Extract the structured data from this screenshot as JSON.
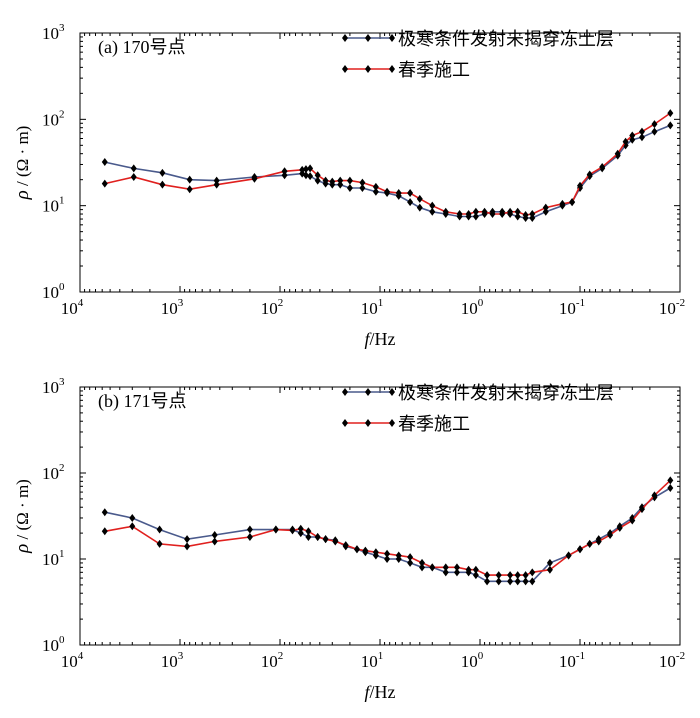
{
  "legend_labels": [
    "极寒条件发射未揭穿冻土层",
    "春季施工"
  ],
  "x_label_italic": "f",
  "x_label_rest": "/Hz",
  "y_label_italic": "ρ",
  "y_label_rest": " / (Ω · m)",
  "colors": {
    "series1": "#4a5a8c",
    "series2": "#e0201e",
    "marker": "#000000"
  },
  "chart_data": [
    {
      "type": "line",
      "title": "(a)  170号点",
      "xscale": "log",
      "yscale": "log",
      "x_reversed": true,
      "xlim": [
        10000,
        0.01
      ],
      "ylim": [
        1,
        1000
      ],
      "x_ticks": [
        {
          "base": "10",
          "exp": "4"
        },
        {
          "base": "10",
          "exp": "3"
        },
        {
          "base": "10",
          "exp": "2"
        },
        {
          "base": "10",
          "exp": "1"
        },
        {
          "base": "10",
          "exp": "0"
        },
        {
          "base": "10",
          "exp": "-1"
        },
        {
          "base": "10",
          "exp": "-2"
        }
      ],
      "y_ticks": [
        {
          "base": "10",
          "exp": "0"
        },
        {
          "base": "10",
          "exp": "1"
        },
        {
          "base": "10",
          "exp": "2"
        },
        {
          "base": "10",
          "exp": "3"
        }
      ],
      "xlabel": "f/Hz",
      "ylabel": "ρ / (Ω · m)",
      "series": [
        {
          "name": "极寒条件发射未揭穿冻土层",
          "x": [
            5650,
            2900,
            1500,
            800,
            430,
            180,
            90,
            60,
            55,
            50,
            42,
            35,
            30,
            25,
            20,
            15,
            11,
            8.5,
            6.5,
            5,
            4,
            3,
            2.2,
            1.6,
            1.3,
            1.1,
            0.9,
            0.75,
            0.6,
            0.5,
            0.42,
            0.35,
            0.3,
            0.22,
            0.15,
            0.12,
            0.1,
            0.08,
            0.06,
            0.042,
            0.035,
            0.03,
            0.024,
            0.018,
            0.0125
          ],
          "y": [
            32,
            27,
            24,
            20,
            19.5,
            21.5,
            22.5,
            23.5,
            22.5,
            22,
            19.5,
            18,
            17.5,
            17.5,
            16,
            16,
            14.5,
            14,
            13,
            11,
            9.5,
            8.5,
            8,
            7.5,
            7.5,
            7.5,
            8,
            8.5,
            8.5,
            8,
            7.5,
            7.2,
            7.2,
            8.5,
            10,
            11,
            16,
            22,
            27,
            38,
            50,
            58,
            62,
            72,
            85
          ]
        },
        {
          "name": "春季施工",
          "x": [
            5650,
            2900,
            1500,
            800,
            430,
            180,
            90,
            60,
            55,
            50,
            42,
            35,
            30,
            25,
            20,
            15,
            11,
            8.5,
            6.5,
            5,
            4,
            3,
            2.2,
            1.6,
            1.3,
            1.1,
            0.9,
            0.75,
            0.6,
            0.5,
            0.42,
            0.35,
            0.3,
            0.22,
            0.15,
            0.12,
            0.1,
            0.08,
            0.06,
            0.042,
            0.035,
            0.03,
            0.024,
            0.018,
            0.0125
          ],
          "y": [
            18,
            21.5,
            17.5,
            15.5,
            17.5,
            20.5,
            25,
            26,
            26.5,
            27,
            22.5,
            19.5,
            19,
            19.5,
            19.5,
            18.5,
            16.5,
            14.5,
            14,
            14,
            12,
            10,
            8.5,
            8,
            8,
            8.5,
            8.5,
            8,
            8,
            8.5,
            8.5,
            7.8,
            8,
            9.5,
            10.5,
            11,
            17,
            23,
            28,
            40,
            55,
            65,
            72,
            88,
            118
          ]
        }
      ]
    },
    {
      "type": "line",
      "title": "(b) 171号点",
      "xscale": "log",
      "yscale": "log",
      "x_reversed": true,
      "xlim": [
        10000,
        0.01
      ],
      "ylim": [
        1,
        1000
      ],
      "x_ticks": [
        {
          "base": "10",
          "exp": "4"
        },
        {
          "base": "10",
          "exp": "3"
        },
        {
          "base": "10",
          "exp": "2"
        },
        {
          "base": "10",
          "exp": "1"
        },
        {
          "base": "10",
          "exp": "0"
        },
        {
          "base": "10",
          "exp": "-1"
        },
        {
          "base": "10",
          "exp": "-2"
        }
      ],
      "y_ticks": [
        {
          "base": "10",
          "exp": "0"
        },
        {
          "base": "10",
          "exp": "1"
        },
        {
          "base": "10",
          "exp": "2"
        },
        {
          "base": "10",
          "exp": "3"
        }
      ],
      "xlabel": "f/Hz",
      "ylabel": "ρ / (Ω · m)",
      "series": [
        {
          "name": "极寒条件发射未揭穿冻土层",
          "x": [
            5650,
            3000,
            1600,
            850,
            450,
            200,
            110,
            75,
            62,
            52,
            42,
            35,
            28,
            22,
            17,
            14,
            11,
            8.5,
            6.5,
            5,
            3.8,
            3,
            2.2,
            1.7,
            1.3,
            1.1,
            0.85,
            0.65,
            0.5,
            0.42,
            0.35,
            0.3,
            0.2,
            0.13,
            0.1,
            0.08,
            0.065,
            0.05,
            0.04,
            0.03,
            0.024,
            0.018,
            0.0125
          ],
          "y": [
            35,
            30,
            22,
            17,
            19,
            22,
            22,
            22,
            20,
            18,
            18,
            17,
            16.5,
            14,
            13,
            12,
            11,
            10,
            10,
            9,
            8,
            8,
            7,
            7,
            7,
            6.5,
            5.5,
            5.5,
            5.5,
            5.5,
            5.5,
            5.5,
            9,
            11,
            13,
            15,
            17,
            20,
            24,
            30,
            40,
            52,
            67
          ]
        },
        {
          "name": "春季施工",
          "x": [
            5650,
            3000,
            1600,
            850,
            450,
            200,
            110,
            75,
            62,
            52,
            42,
            35,
            28,
            22,
            17,
            14,
            11,
            8.5,
            6.5,
            5,
            3.8,
            3,
            2.2,
            1.7,
            1.3,
            1.1,
            0.85,
            0.65,
            0.5,
            0.42,
            0.35,
            0.3,
            0.2,
            0.13,
            0.1,
            0.08,
            0.065,
            0.05,
            0.04,
            0.03,
            0.024,
            0.018,
            0.0125
          ],
          "y": [
            21,
            24,
            15,
            14,
            16,
            18,
            22,
            21.5,
            22.5,
            21,
            18,
            17,
            16,
            14.5,
            13,
            12.5,
            12,
            11.5,
            11,
            10.5,
            9,
            8,
            8,
            8,
            7.5,
            7.5,
            6.5,
            6.5,
            6.5,
            6.5,
            6.5,
            7,
            7.5,
            11,
            13,
            15,
            16,
            19,
            23,
            28,
            38,
            55,
            82
          ]
        }
      ]
    }
  ]
}
